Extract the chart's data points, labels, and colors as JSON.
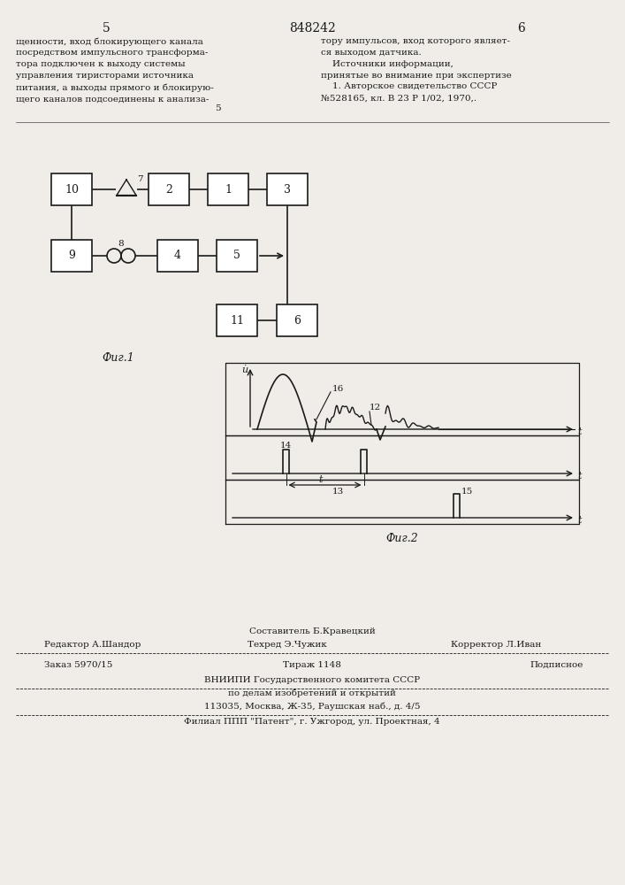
{
  "page_number_left": "5",
  "page_number_center": "848242",
  "page_number_right": "6",
  "text_left": "щенности, вход блокирующего канала\nпосредством импульсного трансформа-\nтора подключен к выходу системы\nуправления тиристорами источника\nпитания, а выходы прямого и блокирую-\nщего каналов подсоединены к анализа-",
  "text_right": "тору импульсов, вход которого являет-\nся выходом датчика.\n    Источники информации,\nпринятые во внимание при экспертизе\n    1. Авторское свидетельство СССР\n№528165, кл. В 23 Р 1/02, 1970,.",
  "fig1_label": "Фиг.1",
  "fig2_label": "Фиг.2",
  "footer_sestavitel": "Составитель Б.Кравецкий",
  "footer_redaktor": "Редактор А.Шандор",
  "footer_tehred": "Техред Э.Чужик",
  "footer_korrektor": "Корректор Л.Иван",
  "footer_order": "Заказ 5970/15",
  "footer_tirazh": "Тираж 1148",
  "footer_podpisnoe": "Подписное",
  "footer_vniip": "ВНИИПИ Государственного комитета СССР",
  "footer_dela": "по делам изобретений и открытий",
  "footer_addr": "113035, Москва, Ж-35, Раушская наб., д. 4/5",
  "footer_filial": "Филиал ППП \"Патент\", г. Ужгород, ул. Проектная, 4",
  "bg_color": "#f0ede8",
  "line_color": "#1a1a1a",
  "text_color": "#1a1a1a"
}
